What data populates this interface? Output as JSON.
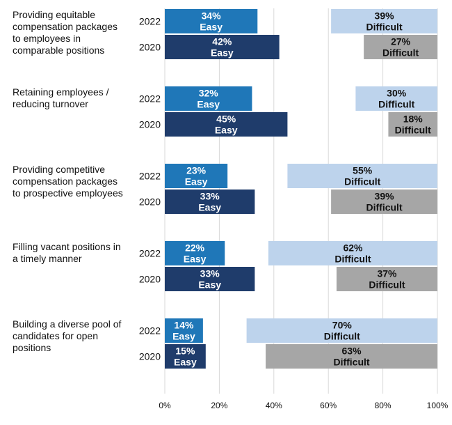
{
  "chart_data": {
    "type": "bar",
    "orientation": "horizontal",
    "stacked": true,
    "categories": [
      "Providing equitable compensation packages to employees in comparable positions",
      "Retaining employees / reducing turnover",
      "Providing competitive compensation packages to prospective employees",
      "Filling vacant positions in a timely manner",
      "Building a diverse pool of candidates for open positions"
    ],
    "category_lines": [
      [
        "Providing equitable",
        "compensation packages",
        "to employees in",
        "comparable positions"
      ],
      [
        "Retaining employees /",
        "reducing turnover"
      ],
      [
        "Providing competitive",
        "compensation packages",
        "to prospective employees"
      ],
      [
        "Filling vacant positions in",
        "a timely manner"
      ],
      [
        "Building a diverse pool of",
        "candidates for open",
        "positions"
      ]
    ],
    "years": [
      "2022",
      "2020"
    ],
    "easy_word": "Easy",
    "difficult_word": "Difficult",
    "values": [
      {
        "y2022": {
          "easy": 34,
          "difficult": 39
        },
        "y2020": {
          "easy": 42,
          "difficult": 27
        }
      },
      {
        "y2022": {
          "easy": 32,
          "difficult": 30
        },
        "y2020": {
          "easy": 45,
          "difficult": 18
        }
      },
      {
        "y2022": {
          "easy": 23,
          "difficult": 55
        },
        "y2020": {
          "easy": 33,
          "difficult": 39
        }
      },
      {
        "y2022": {
          "easy": 22,
          "difficult": 62
        },
        "y2020": {
          "easy": 33,
          "difficult": 37
        }
      },
      {
        "y2022": {
          "easy": 14,
          "difficult": 70
        },
        "y2020": {
          "easy": 15,
          "difficult": 63
        }
      }
    ],
    "xlim": [
      0,
      100
    ],
    "x_ticks": [
      "0%",
      "20%",
      "40%",
      "60%",
      "80%",
      "100%"
    ],
    "grid": true,
    "colors": {
      "easy_2022": "#1f77b8",
      "difficult_2022": "#bdd3ec",
      "easy_2020": "#1f3c6b",
      "difficult_2020": "#a6a6a6",
      "gridline": "#d9d9d9",
      "label_light": "#ffffff",
      "label_dark": "#111111"
    }
  }
}
